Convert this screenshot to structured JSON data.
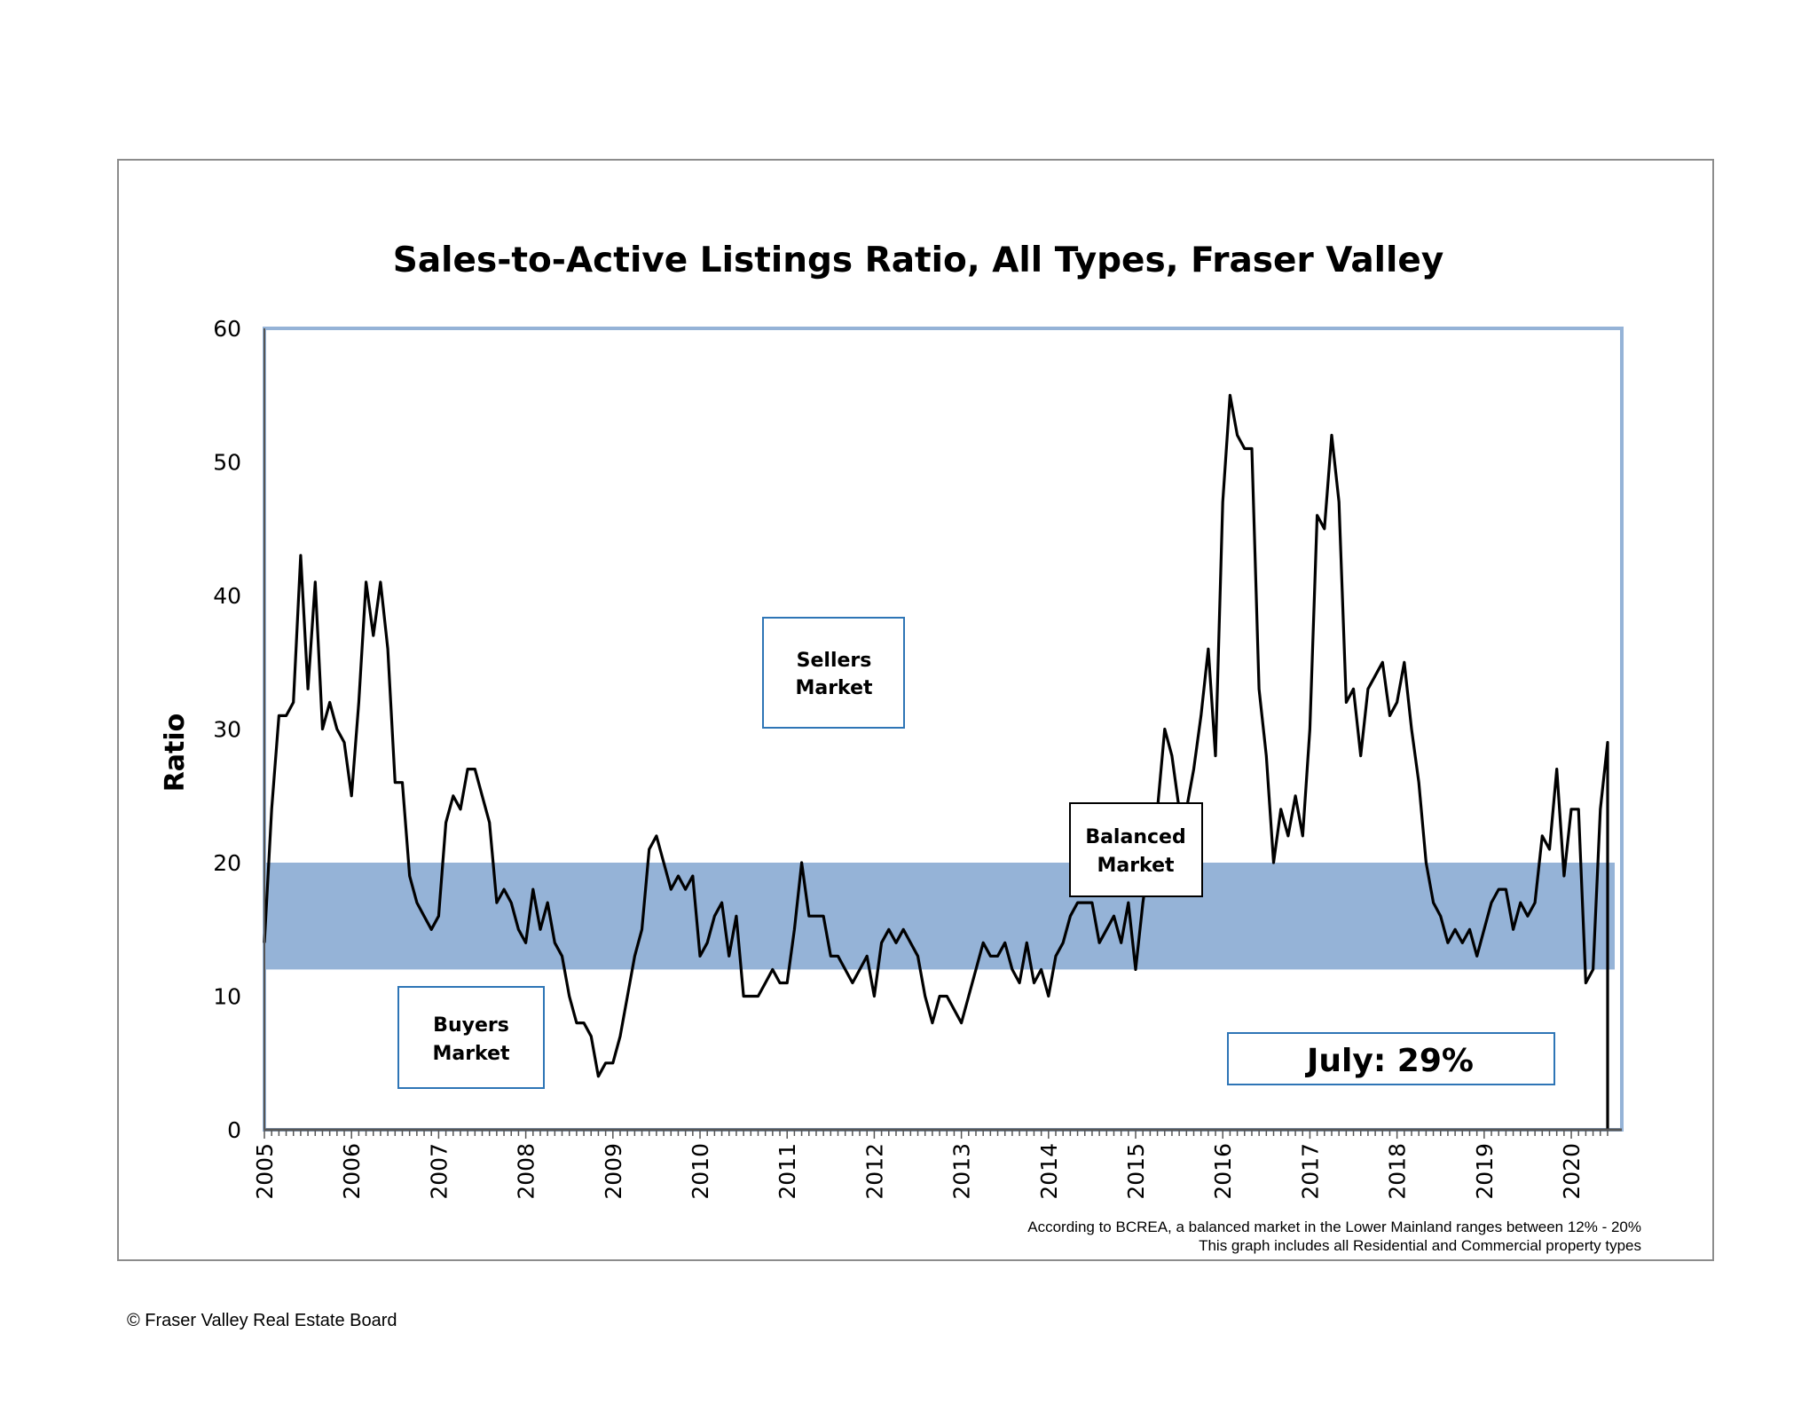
{
  "chart_data": {
    "type": "line",
    "title": "Sales-to-Active Listings Ratio, All Types, Fraser Valley",
    "xlabel": "",
    "ylabel": "Ratio",
    "ylim": [
      0,
      60
    ],
    "yticks": [
      0,
      10,
      20,
      30,
      40,
      50,
      60
    ],
    "xlim": [
      2005,
      2020.58
    ],
    "xticks": [
      "2005",
      "2006",
      "2007",
      "2008",
      "2009",
      "2010",
      "2011",
      "2012",
      "2013",
      "2014",
      "2015",
      "2016",
      "2017",
      "2018",
      "2019",
      "2020"
    ],
    "grid": false,
    "legend": "none",
    "balanced_band": {
      "low": 12,
      "high": 20,
      "color": "#95b3d7"
    },
    "line_color": "#000000",
    "series": [
      {
        "frequency": "monthly",
        "start": "2005-01",
        "values": [
          14,
          24,
          31,
          31,
          32,
          43,
          33,
          41,
          30,
          32,
          30,
          29,
          25,
          32,
          41,
          37,
          41,
          36,
          26,
          26,
          19,
          17,
          16,
          15,
          16,
          23,
          25,
          24,
          27,
          27,
          25,
          23,
          17,
          18,
          17,
          15,
          14,
          18,
          15,
          17,
          14,
          13,
          10,
          8,
          8,
          7,
          4,
          5,
          5,
          7,
          10,
          13,
          15,
          21,
          22,
          20,
          18,
          19,
          18,
          19,
          13,
          14,
          16,
          17,
          13,
          16,
          10,
          10,
          10,
          11,
          12,
          11,
          11,
          15,
          20,
          16,
          16,
          16,
          13,
          13,
          12,
          11,
          12,
          13,
          10,
          14,
          15,
          14,
          15,
          14,
          13,
          10,
          8,
          10,
          10,
          9,
          8,
          10,
          12,
          14,
          13,
          13,
          14,
          12,
          11,
          14,
          11,
          12,
          10,
          13,
          14,
          16,
          17,
          17,
          17,
          14,
          15,
          16,
          14,
          17,
          12,
          17,
          21,
          24,
          30,
          28,
          24,
          24,
          27,
          31,
          36,
          28,
          47,
          55,
          52,
          51,
          51,
          33,
          28,
          20,
          24,
          22,
          25,
          22,
          30,
          46,
          45,
          52,
          47,
          32,
          33,
          28,
          33,
          34,
          35,
          31,
          32,
          35,
          30,
          26,
          20,
          17,
          16,
          14,
          15,
          14,
          15,
          13,
          15,
          17,
          18,
          18,
          15,
          17,
          16,
          17,
          22,
          21,
          27,
          19,
          24,
          24,
          11,
          12,
          24,
          29
        ]
      }
    ],
    "annotations": {
      "sellers": [
        "Sellers",
        "Market"
      ],
      "balanced": [
        "Balanced",
        "Market"
      ],
      "buyers": [
        "Buyers",
        "Market"
      ],
      "july": "July: 29%"
    }
  },
  "notes": {
    "line1": "According to BCREA, a balanced market in the Lower Mainland ranges between 12% - 20%",
    "line2": "This graph includes all Residential and Commercial property types"
  },
  "copyright": "© Fraser Valley Real Estate Board"
}
